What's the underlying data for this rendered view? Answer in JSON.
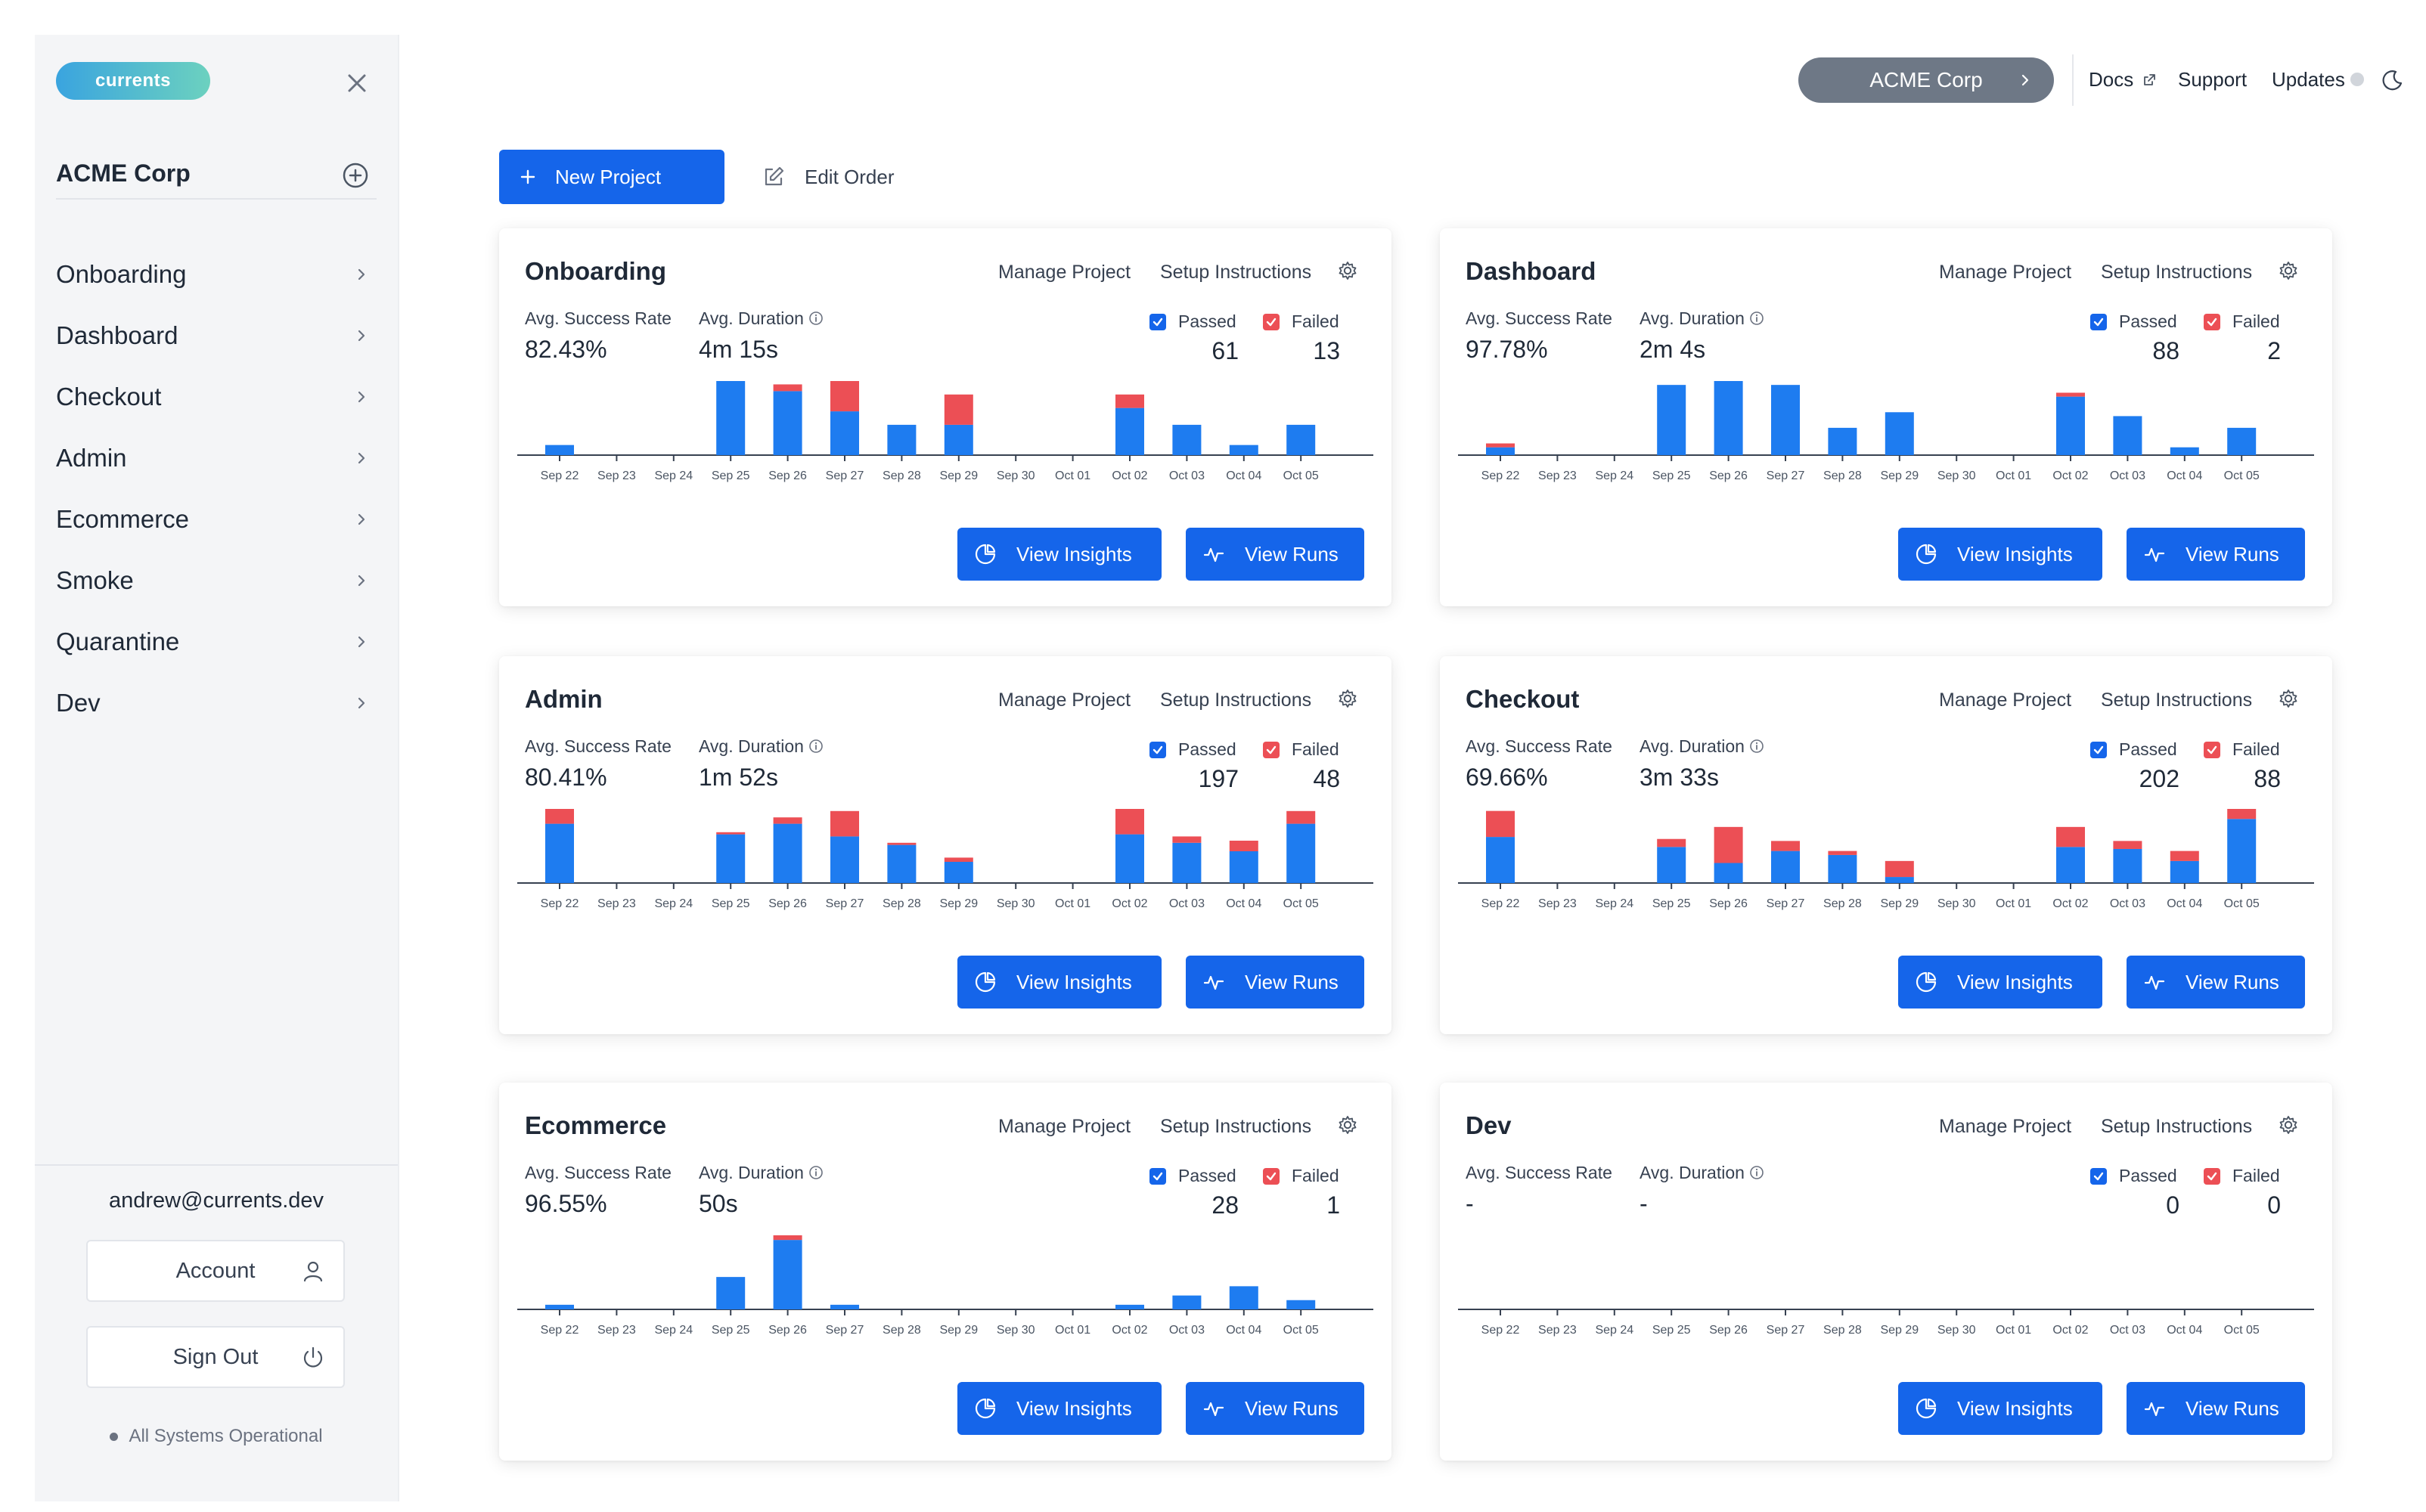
{
  "sidebar": {
    "logo": "currents",
    "org_name": "ACME Corp",
    "items": [
      {
        "label": "Onboarding"
      },
      {
        "label": "Dashboard"
      },
      {
        "label": "Checkout"
      },
      {
        "label": "Admin"
      },
      {
        "label": "Ecommerce"
      },
      {
        "label": "Smoke"
      },
      {
        "label": "Quarantine"
      },
      {
        "label": "Dev"
      }
    ],
    "email": "andrew@currents.dev",
    "account_label": "Account",
    "signout_label": "Sign Out",
    "status_text": "All Systems Operational"
  },
  "topbar": {
    "org_label": "ACME Corp",
    "docs": "Docs",
    "support": "Support",
    "updates": "Updates"
  },
  "actions": {
    "new_project": "New Project",
    "edit_order": "Edit Order"
  },
  "card_labels": {
    "manage": "Manage Project",
    "setup": "Setup Instructions",
    "success_rate": "Avg. Success Rate",
    "duration": "Avg. Duration",
    "passed": "Passed",
    "failed": "Failed",
    "view_insights": "View Insights",
    "view_runs": "View Runs"
  },
  "colors": {
    "passed": "#1e7cf0",
    "failed": "#ec4f55",
    "primary": "#1565ea"
  },
  "projects": [
    {
      "name": "Onboarding",
      "success_rate": "82.43%",
      "duration": "4m 15s",
      "passed": "61",
      "failed": "13",
      "chart_data": {
        "type": "bar",
        "categories": [
          "Sep 22",
          "Sep 23",
          "Sep 24",
          "Sep 25",
          "Sep 26",
          "Sep 27",
          "Sep 28",
          "Sep 29",
          "Sep 30",
          "Oct 01",
          "Oct 02",
          "Oct 03",
          "Oct 04",
          "Oct 05"
        ],
        "series": [
          {
            "name": "Passed",
            "values": [
              3,
              0,
              0,
              22,
              19,
              13,
              9,
              9,
              0,
              0,
              14,
              9,
              3,
              9
            ]
          },
          {
            "name": "Failed",
            "values": [
              0,
              0,
              0,
              0,
              2,
              9,
              0,
              9,
              0,
              0,
              4,
              0,
              0,
              0
            ]
          }
        ],
        "ylim": [
          0,
          22
        ]
      }
    },
    {
      "name": "Dashboard",
      "success_rate": "97.78%",
      "duration": "2m 4s",
      "passed": "88",
      "failed": "2",
      "chart_data": {
        "type": "bar",
        "categories": [
          "Sep 22",
          "Sep 23",
          "Sep 24",
          "Sep 25",
          "Sep 26",
          "Sep 27",
          "Sep 28",
          "Sep 29",
          "Sep 30",
          "Oct 01",
          "Oct 02",
          "Oct 03",
          "Oct 04",
          "Oct 05"
        ],
        "series": [
          {
            "name": "Passed",
            "values": [
              2,
              0,
              0,
              18,
              19,
              18,
              7,
              11,
              0,
              0,
              15,
              10,
              2,
              7
            ]
          },
          {
            "name": "Failed",
            "values": [
              1,
              0,
              0,
              0,
              0,
              0,
              0,
              0,
              0,
              0,
              1,
              0,
              0,
              0
            ]
          }
        ],
        "ylim": [
          0,
          19
        ]
      }
    },
    {
      "name": "Admin",
      "success_rate": "80.41%",
      "duration": "1m 52s",
      "passed": "197",
      "failed": "48",
      "chart_data": {
        "type": "bar",
        "categories": [
          "Sep 22",
          "Sep 23",
          "Sep 24",
          "Sep 25",
          "Sep 26",
          "Sep 27",
          "Sep 28",
          "Sep 29",
          "Sep 30",
          "Oct 01",
          "Oct 02",
          "Oct 03",
          "Oct 04",
          "Oct 05"
        ],
        "series": [
          {
            "name": "Passed",
            "values": [
              28,
              0,
              0,
              23,
              28,
              22,
              18,
              10,
              0,
              0,
              23,
              19,
              15,
              28
            ]
          },
          {
            "name": "Failed",
            "values": [
              7,
              0,
              0,
              1,
              3,
              12,
              1,
              2,
              0,
              0,
              12,
              3,
              5,
              6
            ]
          }
        ],
        "ylim": [
          0,
          35
        ]
      }
    },
    {
      "name": "Checkout",
      "success_rate": "69.66%",
      "duration": "3m 33s",
      "passed": "202",
      "failed": "88",
      "chart_data": {
        "type": "bar",
        "categories": [
          "Sep 22",
          "Sep 23",
          "Sep 24",
          "Sep 25",
          "Sep 26",
          "Sep 27",
          "Sep 28",
          "Sep 29",
          "Sep 30",
          "Oct 01",
          "Oct 02",
          "Oct 03",
          "Oct 04",
          "Oct 05"
        ],
        "series": [
          {
            "name": "Passed",
            "values": [
              23,
              0,
              0,
              18,
              10,
              16,
              14,
              3,
              0,
              0,
              18,
              17,
              11,
              32
            ]
          },
          {
            "name": "Failed",
            "values": [
              13,
              0,
              0,
              4,
              18,
              5,
              2,
              8,
              0,
              0,
              10,
              4,
              5,
              5
            ]
          }
        ],
        "ylim": [
          0,
          37
        ]
      }
    },
    {
      "name": "Ecommerce",
      "success_rate": "96.55%",
      "duration": "50s",
      "passed": "28",
      "failed": "1",
      "chart_data": {
        "type": "bar",
        "categories": [
          "Sep 22",
          "Sep 23",
          "Sep 24",
          "Sep 25",
          "Sep 26",
          "Sep 27",
          "Sep 28",
          "Sep 29",
          "Sep 30",
          "Oct 01",
          "Oct 02",
          "Oct 03",
          "Oct 04",
          "Oct 05"
        ],
        "series": [
          {
            "name": "Passed",
            "values": [
              1,
              0,
              0,
              7,
              15,
              1,
              0,
              0,
              0,
              0,
              1,
              3,
              5,
              2
            ]
          },
          {
            "name": "Failed",
            "values": [
              0,
              0,
              0,
              0,
              1,
              0,
              0,
              0,
              0,
              0,
              0,
              0,
              0,
              0
            ]
          }
        ],
        "ylim": [
          0,
          16
        ]
      }
    },
    {
      "name": "Dev",
      "success_rate": "-",
      "duration": "-",
      "passed": "0",
      "failed": "0",
      "chart_data": {
        "type": "bar",
        "categories": [
          "Sep 22",
          "Sep 23",
          "Sep 24",
          "Sep 25",
          "Sep 26",
          "Sep 27",
          "Sep 28",
          "Sep 29",
          "Sep 30",
          "Oct 01",
          "Oct 02",
          "Oct 03",
          "Oct 04",
          "Oct 05"
        ],
        "series": [
          {
            "name": "Passed",
            "values": [
              0,
              0,
              0,
              0,
              0,
              0,
              0,
              0,
              0,
              0,
              0,
              0,
              0,
              0
            ]
          },
          {
            "name": "Failed",
            "values": [
              0,
              0,
              0,
              0,
              0,
              0,
              0,
              0,
              0,
              0,
              0,
              0,
              0,
              0
            ]
          }
        ],
        "ylim": [
          0,
          1
        ]
      }
    }
  ]
}
